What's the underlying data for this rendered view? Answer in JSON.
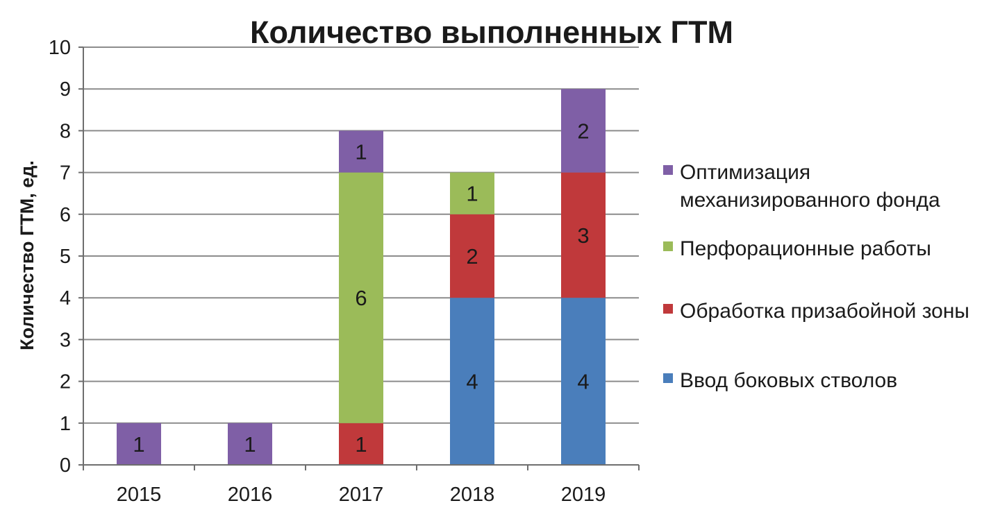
{
  "chart_data": {
    "type": "bar",
    "stacked": true,
    "title": "Количество выполненных ГТМ",
    "xlabel": "",
    "ylabel": "Количество ГТМ, ед.",
    "categories": [
      "2015",
      "2016",
      "2017",
      "2018",
      "2019"
    ],
    "ylim": [
      0,
      10
    ],
    "yticks": [
      0,
      1,
      2,
      3,
      4,
      5,
      6,
      7,
      8,
      9,
      10
    ],
    "grid": true,
    "legend_position": "right",
    "series": [
      {
        "name": "Ввод боковых стволов",
        "color": "#4a7ebb",
        "values": [
          0,
          0,
          0,
          4,
          4
        ]
      },
      {
        "name": "Обработка призабойной зоны",
        "color": "#c0393b",
        "values": [
          0,
          0,
          1,
          2,
          3
        ]
      },
      {
        "name": "Перфорационные работы",
        "color": "#9bbb59",
        "values": [
          0,
          0,
          6,
          1,
          0
        ]
      },
      {
        "name": "Оптимизация механизированного фонда",
        "color": "#7f5fa6",
        "values": [
          1,
          1,
          1,
          0,
          2
        ]
      }
    ],
    "legend_lines": [
      [
        "Оптимизация",
        "механизированного фонда"
      ],
      [
        "Перфорационные работы"
      ],
      [
        "Обработка призабойной зоны"
      ],
      [
        "Ввод боковых стволов"
      ]
    ]
  }
}
